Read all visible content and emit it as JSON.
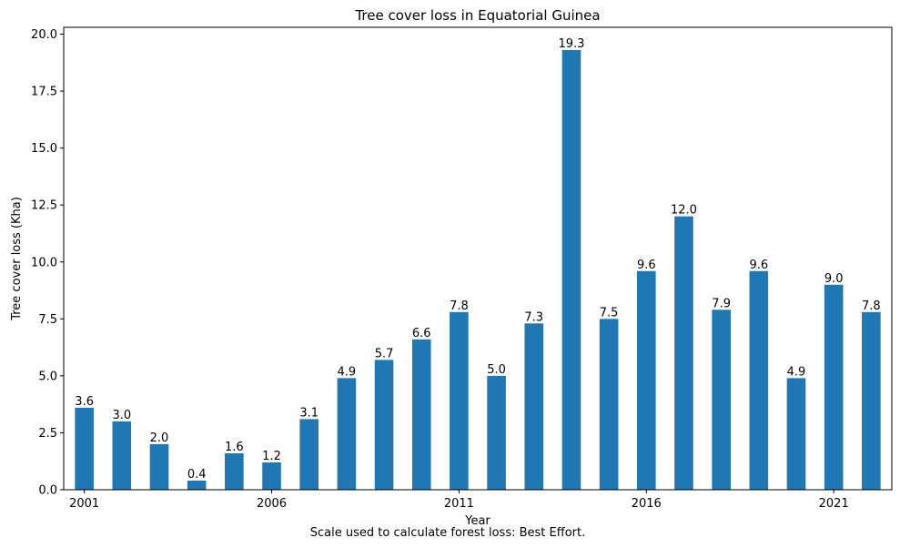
{
  "chart_data": {
    "type": "bar",
    "title": "Tree cover loss in Equatorial Guinea",
    "xlabel": "Year",
    "ylabel": "Tree cover loss (Kha)",
    "footnote": "Scale used to calculate forest loss: Best Effort.",
    "categories": [
      "2001",
      "2002",
      "2003",
      "2004",
      "2005",
      "2006",
      "2007",
      "2008",
      "2009",
      "2010",
      "2011",
      "2012",
      "2013",
      "2014",
      "2015",
      "2016",
      "2017",
      "2018",
      "2019",
      "2020",
      "2021",
      "2022"
    ],
    "values": [
      3.6,
      3.0,
      2.0,
      0.4,
      1.6,
      1.2,
      3.1,
      4.9,
      5.7,
      6.6,
      7.8,
      5.0,
      7.3,
      19.3,
      7.5,
      9.6,
      12.0,
      7.9,
      9.6,
      4.9,
      9.0,
      7.8
    ],
    "data_labels": [
      "3.6",
      "3.0",
      "2.0",
      "0.4",
      "1.6",
      "1.2",
      "3.1",
      "4.9",
      "5.7",
      "6.6",
      "7.8",
      "5.0",
      "7.3",
      "19.3",
      "7.5",
      "9.6",
      "12.0",
      "7.9",
      "9.6",
      "4.9",
      "9.0",
      "7.8"
    ],
    "x_tick_labels": [
      "2001",
      "2006",
      "2011",
      "2016",
      "2021"
    ],
    "y_ticks": [
      0.0,
      2.5,
      5.0,
      7.5,
      10.0,
      12.5,
      15.0,
      17.5,
      20.0
    ],
    "y_tick_labels": [
      "0.0",
      "2.5",
      "5.0",
      "7.5",
      "10.0",
      "12.5",
      "15.0",
      "17.5",
      "20.0"
    ],
    "ylim": [
      0,
      20.3
    ],
    "grid": false,
    "bar_color": "#1f77b4"
  }
}
